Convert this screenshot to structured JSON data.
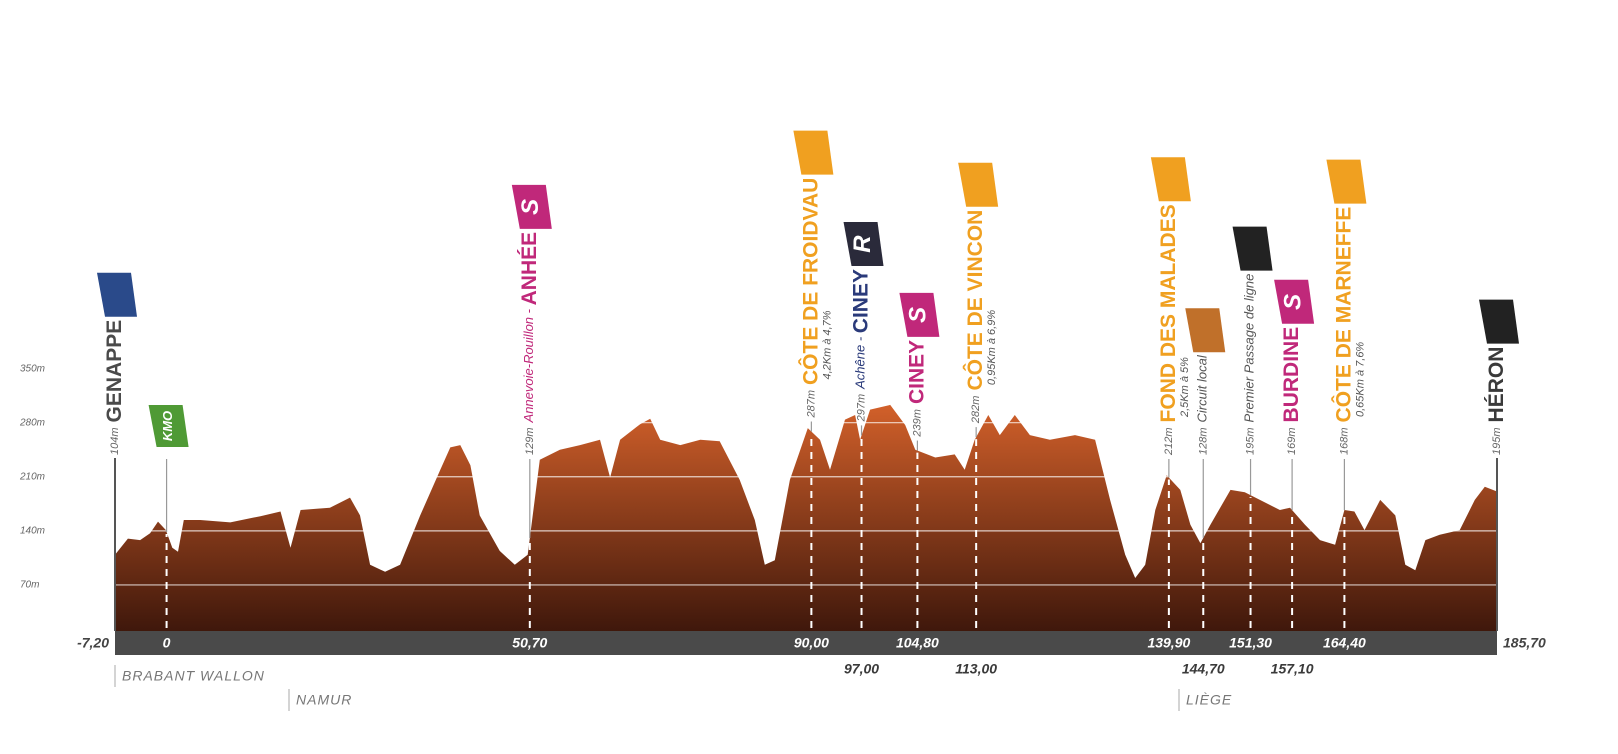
{
  "chart_data": {
    "type": "area",
    "color": "#d2602a",
    "x": [
      -7.2,
      -5.4,
      -3.7,
      -2.3,
      -1.2,
      -0.1,
      0.8,
      1.6,
      2.4,
      4.7,
      8.9,
      13.1,
      15.9,
      17.3,
      18.7,
      22.8,
      25.6,
      27.0,
      28.4,
      30.5,
      32.6,
      35.4,
      38.2,
      39.6,
      41.0,
      42.4,
      43.7,
      46.5,
      48.6,
      50.4,
      52.1,
      54.9,
      57.7,
      60.5,
      61.9,
      63.3,
      66.1,
      67.5,
      68.9,
      71.7,
      74.5,
      77.2,
      80.0,
      82.1,
      83.5,
      84.9,
      87.0,
      89.5,
      91.2,
      92.6,
      94.7,
      96.1,
      96.8,
      98.2,
      101.0,
      103.1,
      104.5,
      107.3,
      110.0,
      111.4,
      112.8,
      114.7,
      116.3,
      118.4,
      120.5,
      123.3,
      126.8,
      129.6,
      131.7,
      133.8,
      135.2,
      136.6,
      138.0,
      139.6,
      141.5,
      142.9,
      144.3,
      145.7,
      148.5,
      150.5,
      152.6,
      155.4,
      156.8,
      158.9,
      161.0,
      163.1,
      164.4,
      165.8,
      167.2,
      169.4,
      171.5,
      172.9,
      174.3,
      175.7,
      177.7,
      180.5,
      182.6,
      184.0,
      185.7
    ],
    "values": [
      109,
      130,
      128,
      137,
      152,
      141,
      118,
      113,
      154,
      154,
      151,
      159,
      165,
      118,
      167,
      170,
      183,
      160,
      96,
      87,
      96,
      160,
      219,
      248,
      251,
      225,
      160,
      114,
      96,
      109,
      232,
      245,
      251,
      258,
      209,
      258,
      278,
      285,
      258,
      251,
      258,
      256,
      206,
      154,
      96,
      102,
      206,
      273,
      258,
      219,
      284,
      290,
      258,
      297,
      303,
      277,
      245,
      235,
      239,
      219,
      258,
      290,
      264,
      290,
      264,
      258,
      264,
      258,
      180,
      109,
      79,
      96,
      167,
      212,
      193,
      148,
      124,
      148,
      193,
      190,
      180,
      167,
      170,
      148,
      128,
      122,
      167,
      165,
      141,
      180,
      160,
      96,
      89,
      128,
      135,
      141,
      180,
      197,
      191
    ],
    "xlim": [
      -7.2,
      185.7
    ],
    "ylim": [
      0,
      400
    ],
    "yticks": [
      {
        "value": 350,
        "label": "350m"
      },
      {
        "value": 280,
        "label": "280m"
      },
      {
        "value": 210,
        "label": "210m"
      },
      {
        "value": 140,
        "label": "140m"
      },
      {
        "value": 70,
        "label": "70m"
      }
    ],
    "xticks": [
      {
        "value": -7.2,
        "label": "-7,20"
      },
      0,
      {
        "value": 50.7,
        "label": "50,70"
      },
      {
        "value": 90,
        "label": "90,00"
      },
      {
        "value": 97,
        "label": "97,00"
      },
      {
        "value": 104.8,
        "label": "104,80"
      },
      {
        "value": 113,
        "label": "113,00"
      },
      {
        "value": 139.9,
        "label": "139,90"
      },
      {
        "value": 144.7,
        "label": "144,70"
      },
      {
        "value": 151.3,
        "label": "151,30"
      },
      {
        "value": 157.1,
        "label": "157,10"
      },
      {
        "value": 164.4,
        "label": "164,40"
      },
      {
        "value": 185.7,
        "label": "185,70"
      }
    ],
    "grid": true,
    "markers": [
      {
        "altitude": "104m",
        "name": "GENAPPE",
        "color": "#4a4a4a",
        "flag_color": "#2a4a8a"
      },
      {
        "flag": "KMO",
        "flag_color": "#4f9a35"
      },
      {
        "altitude": "129m",
        "prefix": "Annevoie-Rouillon - ",
        "name": "ANHÉE",
        "color": "#c0287a",
        "flag": "S",
        "flag_color": "#c0287a"
      },
      {
        "altitude": "287m",
        "name": "CÔTE DE FROIDVAU",
        "note": "4,2Km à 4,7%",
        "color": "#f0a020",
        "flag_color": "#f0a020"
      },
      {
        "altitude": "297m",
        "prefix": "Achêne - ",
        "name": "CINEY",
        "color": "#2a3a7a",
        "flag": "R",
        "flag_color": "#2a2a3a"
      },
      {
        "altitude": "239m",
        "name": "CINEY",
        "color": "#c0287a",
        "flag": "S",
        "flag_color": "#c0287a"
      },
      {
        "altitude": "282m",
        "name": "CÔTE DE VINCON",
        "note": "0,95Km à 6,9%",
        "color": "#f0a020",
        "flag_color": "#f0a020"
      },
      {
        "altitude": "212m",
        "name": "FOND DES MALADES",
        "note": "2,5Km à 5%",
        "color": "#f0a020",
        "flag_color": "#f0a020"
      },
      {
        "altitude": "128m",
        "prefix": "Circuit local",
        "color": "#555555",
        "flag_color": "#c0702a"
      },
      {
        "altitude": "195m",
        "prefix": "Premier Passage de ligne",
        "color": "#555555",
        "flag_color": "#222222"
      },
      {
        "altitude": "169m",
        "name": "BURDINE",
        "color": "#c0287a",
        "flag": "S",
        "flag_color": "#c0287a"
      },
      {
        "altitude": "168m",
        "name": "CÔTE DE MARNEFFE",
        "note": "0,65Km à 7,6%",
        "color": "#f0a020",
        "flag_color": "#f0a020"
      },
      {
        "altitude": "195m",
        "name": "HÉRON",
        "color": "#3a3a3a",
        "flag_color": "#222222"
      }
    ],
    "regions": [
      "BRABANT WALLON",
      "NAMUR",
      "LIÈGE"
    ]
  }
}
